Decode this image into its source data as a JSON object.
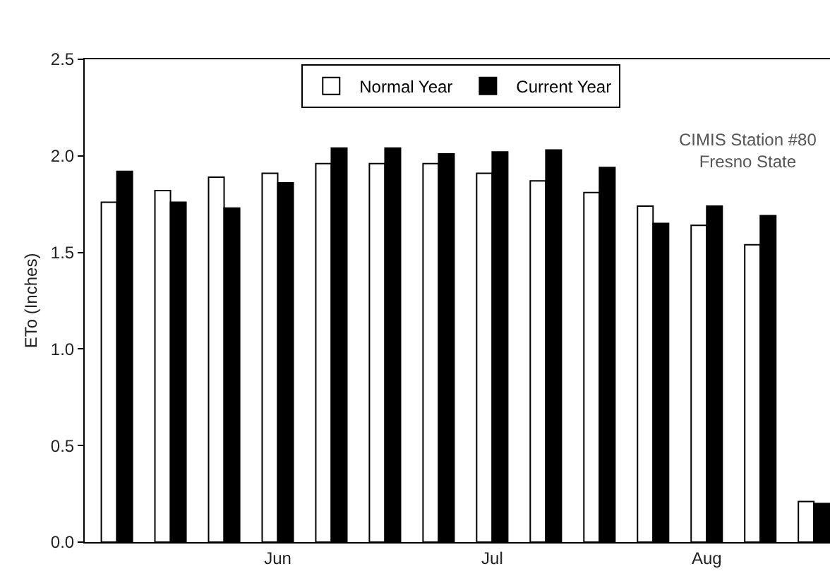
{
  "chart_data": {
    "type": "bar",
    "ylabel": "ETo (Inches)",
    "categories": [
      null,
      null,
      null,
      "Jun",
      null,
      null,
      null,
      "Jul",
      null,
      null,
      null,
      "Aug",
      null,
      null
    ],
    "series": [
      {
        "name": "Normal Year",
        "color": "#ffffff",
        "values": [
          1.76,
          1.82,
          1.89,
          1.91,
          1.96,
          1.96,
          1.96,
          1.91,
          1.87,
          1.81,
          1.74,
          1.64,
          1.54,
          0.21
        ]
      },
      {
        "name": "Current Year",
        "color": "#000000",
        "values": [
          1.92,
          1.76,
          1.73,
          1.86,
          2.04,
          2.04,
          2.01,
          2.02,
          2.03,
          1.94,
          1.65,
          1.74,
          1.69,
          0.2
        ]
      }
    ],
    "ylim": [
      0,
      2.5
    ],
    "yticks": [
      {
        "value": 0,
        "label": "0.0"
      },
      {
        "value": 0.5,
        "label": "0.5"
      },
      {
        "value": 1,
        "label": "1.0"
      },
      {
        "value": 1.5,
        "label": "1.5"
      },
      {
        "value": 2,
        "label": "2.0"
      },
      {
        "value": 2.5,
        "label": "2.5"
      }
    ],
    "annotations": [
      "CIMIS Station #80\nFresno State"
    ],
    "grid": false,
    "legend": "top"
  }
}
